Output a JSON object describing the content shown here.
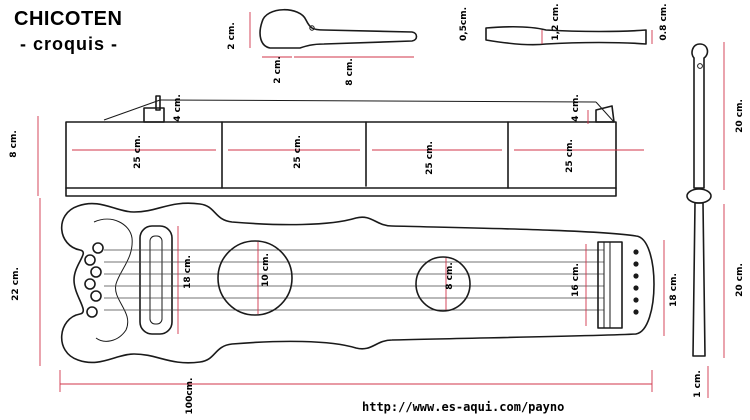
{
  "title": "CHICOTEN",
  "subtitle": "- croquis -",
  "footer_url": "http://www.es-aqui.com/payno",
  "colors": {
    "ink": "#1a1a1a",
    "dimension": "#d0344a",
    "background": "#ffffff"
  },
  "mallet": {
    "head_height": "2 cm.",
    "neck_width": "2 cm.",
    "handle_length": "8 cm."
  },
  "stick": {
    "end_thickness": "0,5cm.",
    "mid_thickness": "1,2 cm.",
    "tip_thickness": "0.8 cm."
  },
  "box_side": {
    "height": "8 cm.",
    "bridge": "4 cm.",
    "post": "4 cm.",
    "section_length": "25 cm.",
    "sections": [
      "25 cm.",
      "25 cm.",
      "25 cm.",
      "25 cm."
    ]
  },
  "body_top": {
    "width": "22 cm.",
    "bridge_span": "18 cm.",
    "sound_hole_large": "10 cm.",
    "sound_hole_small": "8 cm.",
    "nut_span": "16 cm.",
    "end_width": "18 cm.",
    "total_length": "100cm."
  },
  "peg": {
    "length": "20 cm.",
    "length_lower": "20 cm.",
    "tip": "1 cm."
  }
}
